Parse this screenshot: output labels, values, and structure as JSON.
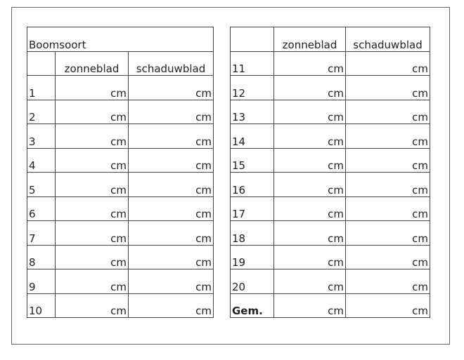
{
  "left_table": {
    "title": "Boomsoort",
    "headers": [
      "zonneblad",
      "schaduwblad"
    ],
    "rows": [
      {
        "label": "1",
        "sun": "cm",
        "shade": "cm"
      },
      {
        "label": "2",
        "sun": "cm",
        "shade": "cm"
      },
      {
        "label": "3",
        "sun": "cm",
        "shade": "cm"
      },
      {
        "label": "4",
        "sun": "cm",
        "shade": "cm"
      },
      {
        "label": "5",
        "sun": "cm",
        "shade": "cm"
      },
      {
        "label": "6",
        "sun": "cm",
        "shade": "cm"
      },
      {
        "label": "7",
        "sun": "cm",
        "shade": "cm"
      },
      {
        "label": "8",
        "sun": "cm",
        "shade": "cm"
      },
      {
        "label": "9",
        "sun": "cm",
        "shade": "cm"
      },
      {
        "label": "10",
        "sun": "cm",
        "shade": "cm"
      }
    ]
  },
  "right_table": {
    "headers": [
      "zonneblad",
      "schaduwblad"
    ],
    "rows": [
      {
        "label": "11",
        "sun": "cm",
        "shade": "cm"
      },
      {
        "label": "12",
        "sun": "cm",
        "shade": "cm"
      },
      {
        "label": "13",
        "sun": "cm",
        "shade": "cm"
      },
      {
        "label": "14",
        "sun": "cm",
        "shade": "cm"
      },
      {
        "label": "15",
        "sun": "cm",
        "shade": "cm"
      },
      {
        "label": "16",
        "sun": "cm",
        "shade": "cm"
      },
      {
        "label": "17",
        "sun": "cm",
        "shade": "cm"
      },
      {
        "label": "18",
        "sun": "cm",
        "shade": "cm"
      },
      {
        "label": "19",
        "sun": "cm",
        "shade": "cm"
      },
      {
        "label": "20",
        "sun": "cm",
        "shade": "cm"
      },
      {
        "label": "Gem.",
        "sun": "cm",
        "shade": "cm",
        "bold": true
      }
    ]
  }
}
